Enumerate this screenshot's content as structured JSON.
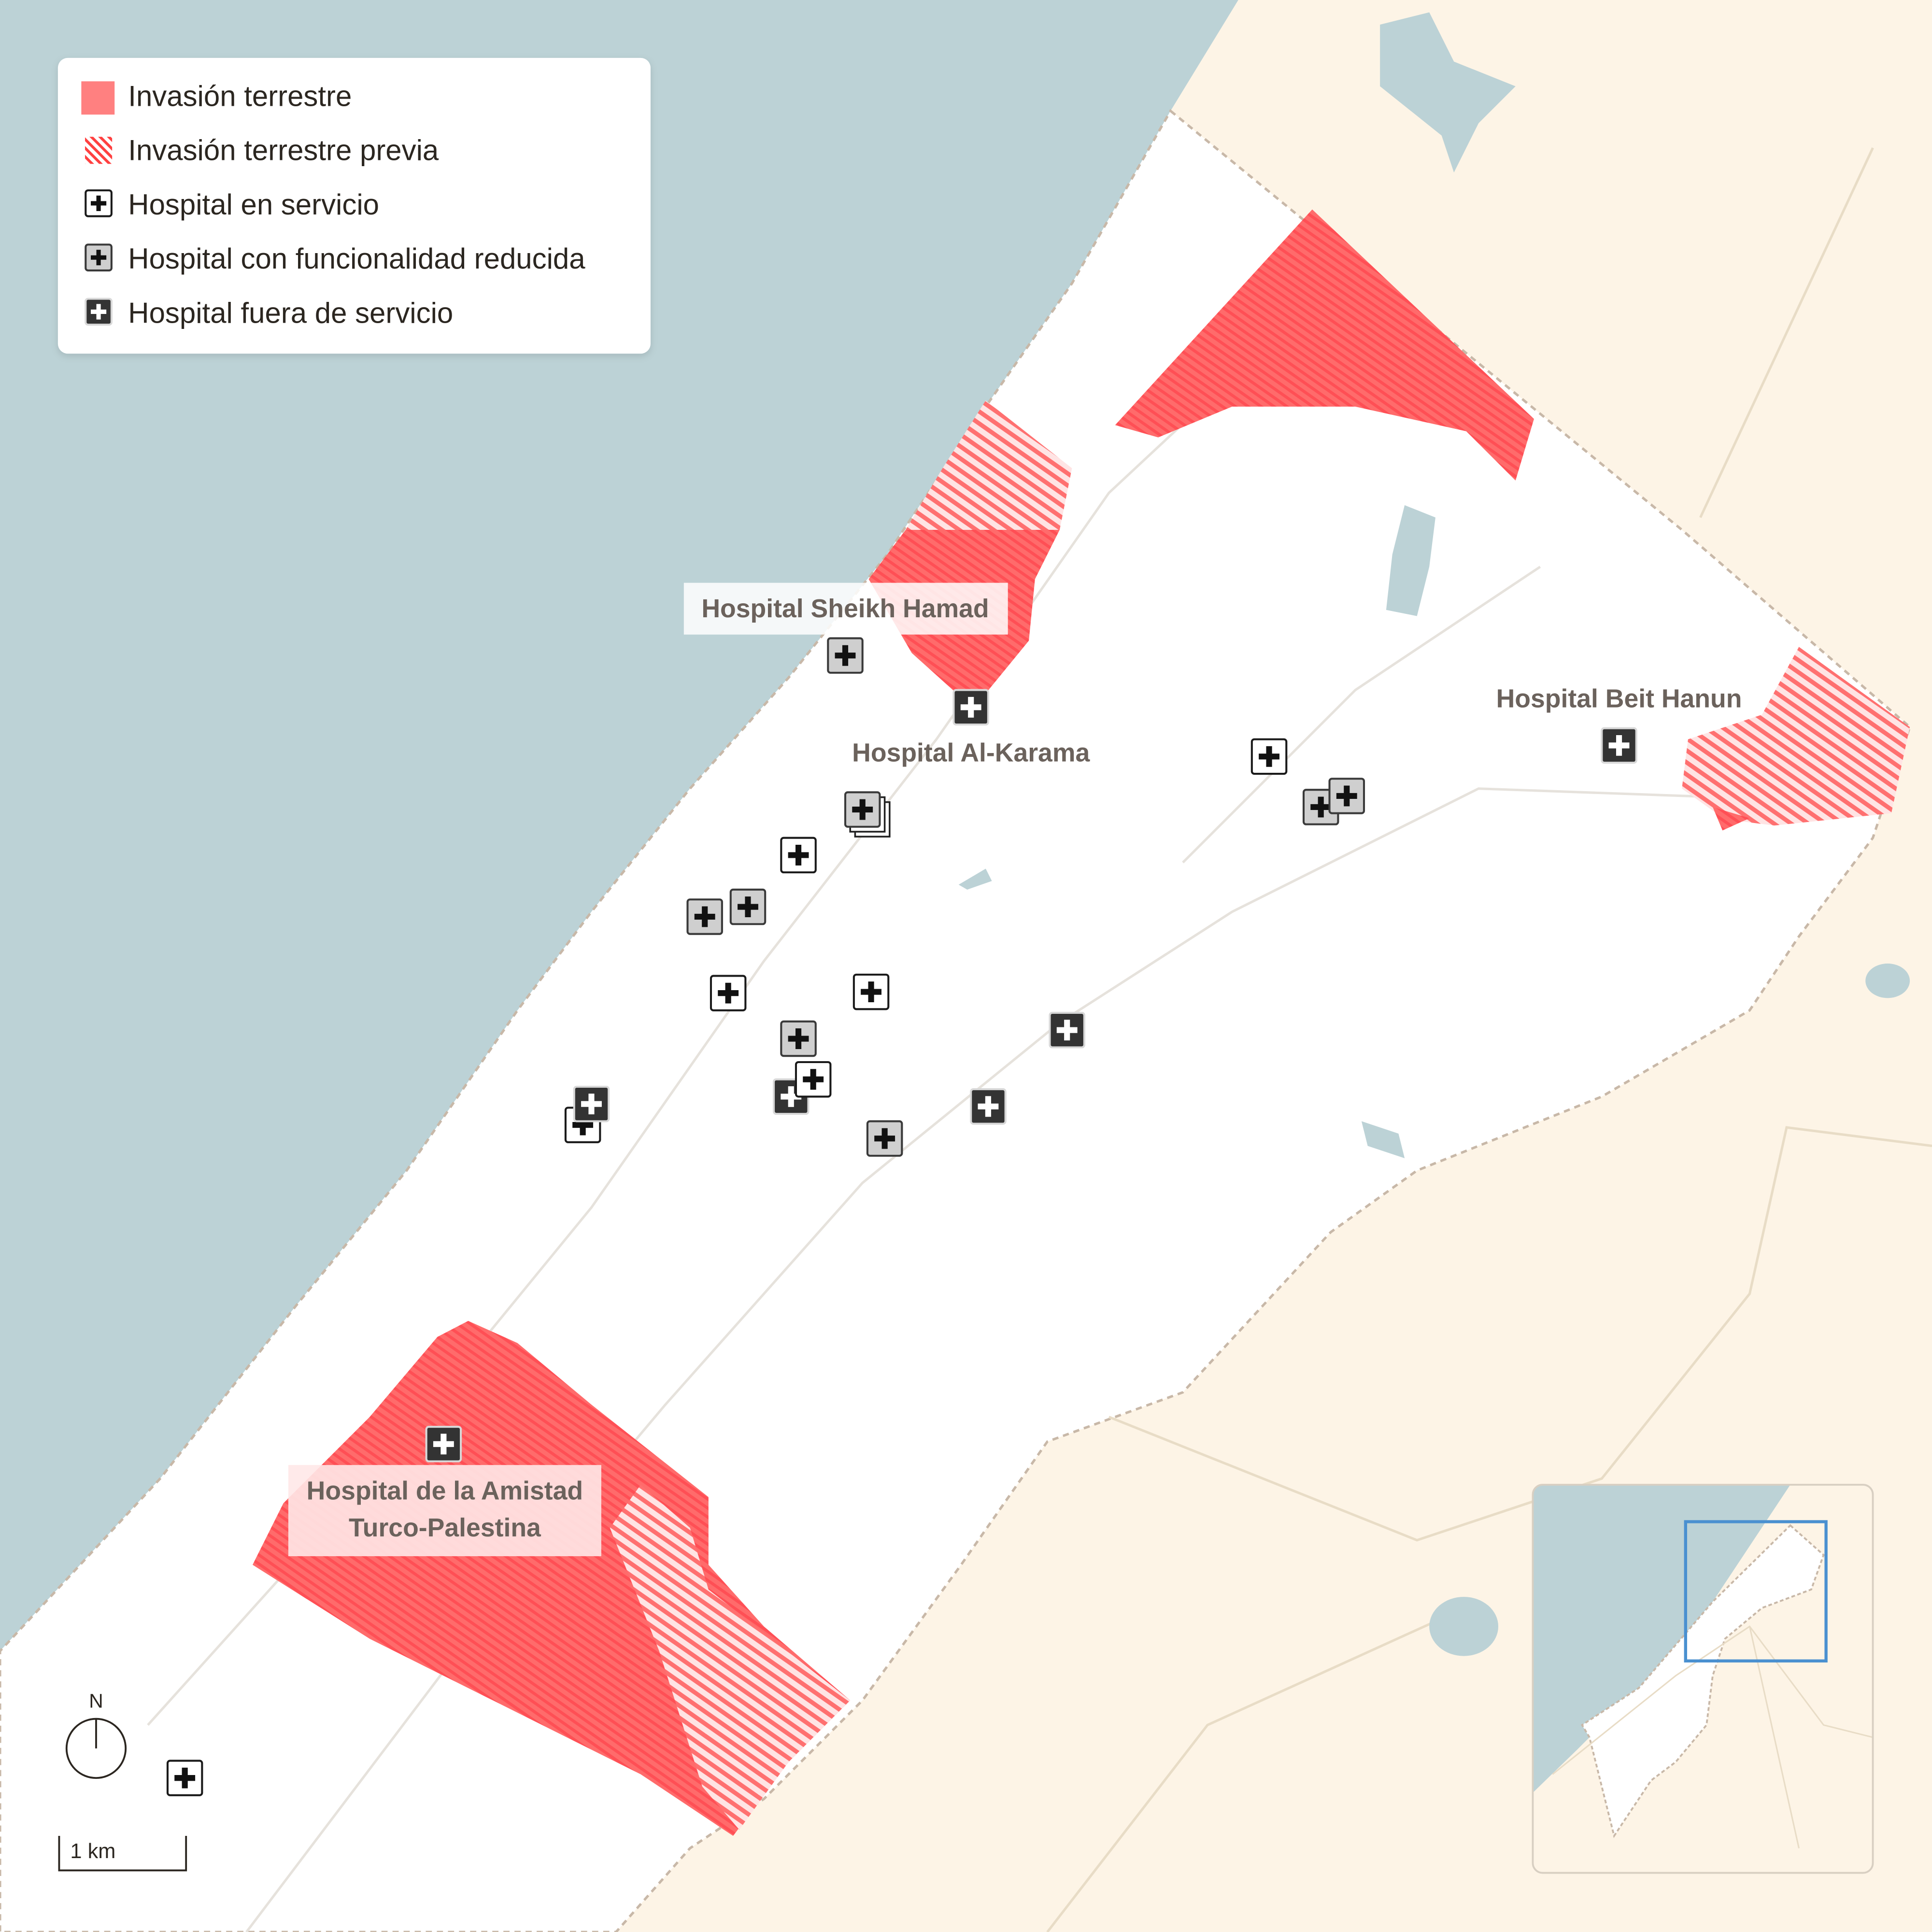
{
  "legend": {
    "items": [
      {
        "label": "Invasión terrestre",
        "symbol": "solid-red-swatch"
      },
      {
        "label": "Invasión terrestre previa",
        "symbol": "hatched-red-swatch"
      },
      {
        "label": "Hospital en servicio",
        "symbol": "hospital-in-service-icon"
      },
      {
        "label": "Hospital con funcionalidad reducida",
        "symbol": "hospital-reduced-icon"
      },
      {
        "label": "Hospital fuera de servicio",
        "symbol": "hospital-out-of-service-icon"
      }
    ]
  },
  "labels": {
    "sheikh_hamad": "Hospital Sheikh Hamad",
    "al_karama": "Hospital Al-Karama",
    "beit_hanun": "Hospital Beit Hanun",
    "turco_line1": "Hospital de la Amistad",
    "turco_line2": "Turco-Palestina"
  },
  "hospitals": [
    {
      "status": "reduced",
      "name": "Hospital Sheikh Hamad"
    },
    {
      "status": "out"
    },
    {
      "status": "reduced"
    },
    {
      "status": "in-service"
    },
    {
      "status": "reduced"
    },
    {
      "status": "reduced"
    },
    {
      "status": "in-service"
    },
    {
      "status": "in-service"
    },
    {
      "status": "reduced"
    },
    {
      "status": "out"
    },
    {
      "status": "in-service"
    },
    {
      "status": "reduced"
    },
    {
      "status": "out"
    },
    {
      "status": "out"
    },
    {
      "status": "in-service"
    },
    {
      "status": "out"
    },
    {
      "status": "in-service"
    },
    {
      "status": "reduced"
    },
    {
      "status": "reduced"
    },
    {
      "status": "out",
      "name": "Hospital Beit Hanun"
    },
    {
      "status": "out",
      "name": "Hospital de la Amistad Turco-Palestina"
    },
    {
      "status": "in-service"
    }
  ],
  "compass": {
    "label": "N"
  },
  "scale": {
    "label": "1 km"
  },
  "colors": {
    "sea": "#bcd2d6",
    "gaza": "#ffffff",
    "surrounding_land": "#fdf4e6",
    "invasion": "#ff5c5c",
    "locator_box": "#4a90d0",
    "border": "#c8b8a8"
  }
}
